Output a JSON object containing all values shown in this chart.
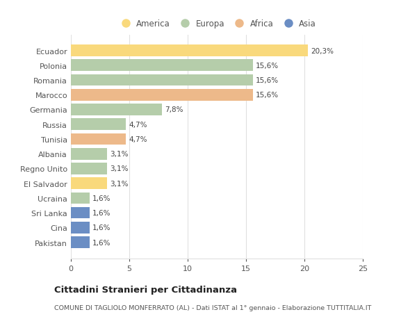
{
  "categories": [
    "Ecuador",
    "Polonia",
    "Romania",
    "Marocco",
    "Germania",
    "Russia",
    "Tunisia",
    "Albania",
    "Regno Unito",
    "El Salvador",
    "Ucraina",
    "Sri Lanka",
    "Cina",
    "Pakistan"
  ],
  "values": [
    20.3,
    15.6,
    15.6,
    15.6,
    7.8,
    4.7,
    4.7,
    3.1,
    3.1,
    3.1,
    1.6,
    1.6,
    1.6,
    1.6
  ],
  "labels": [
    "20,3%",
    "15,6%",
    "15,6%",
    "15,6%",
    "7,8%",
    "4,7%",
    "4,7%",
    "3,1%",
    "3,1%",
    "3,1%",
    "1,6%",
    "1,6%",
    "1,6%",
    "1,6%"
  ],
  "continents": [
    "America",
    "Europa",
    "Europa",
    "Africa",
    "Europa",
    "Europa",
    "Africa",
    "Europa",
    "Europa",
    "America",
    "Europa",
    "Asia",
    "Asia",
    "Asia"
  ],
  "colors": {
    "America": "#F9D97C",
    "Europa": "#B5CDAA",
    "Africa": "#EDB98A",
    "Asia": "#6B8EC4"
  },
  "xlim": [
    0,
    25
  ],
  "xticks": [
    0,
    5,
    10,
    15,
    20,
    25
  ],
  "title": "Cittadini Stranieri per Cittadinanza",
  "subtitle": "COMUNE DI TAGLIOLO MONFERRATO (AL) - Dati ISTAT al 1° gennaio - Elaborazione TUTTITALIA.IT",
  "background_color": "#ffffff",
  "grid_color": "#e0e0e0",
  "bar_height": 0.78,
  "legend_order": [
    "America",
    "Europa",
    "Africa",
    "Asia"
  ]
}
